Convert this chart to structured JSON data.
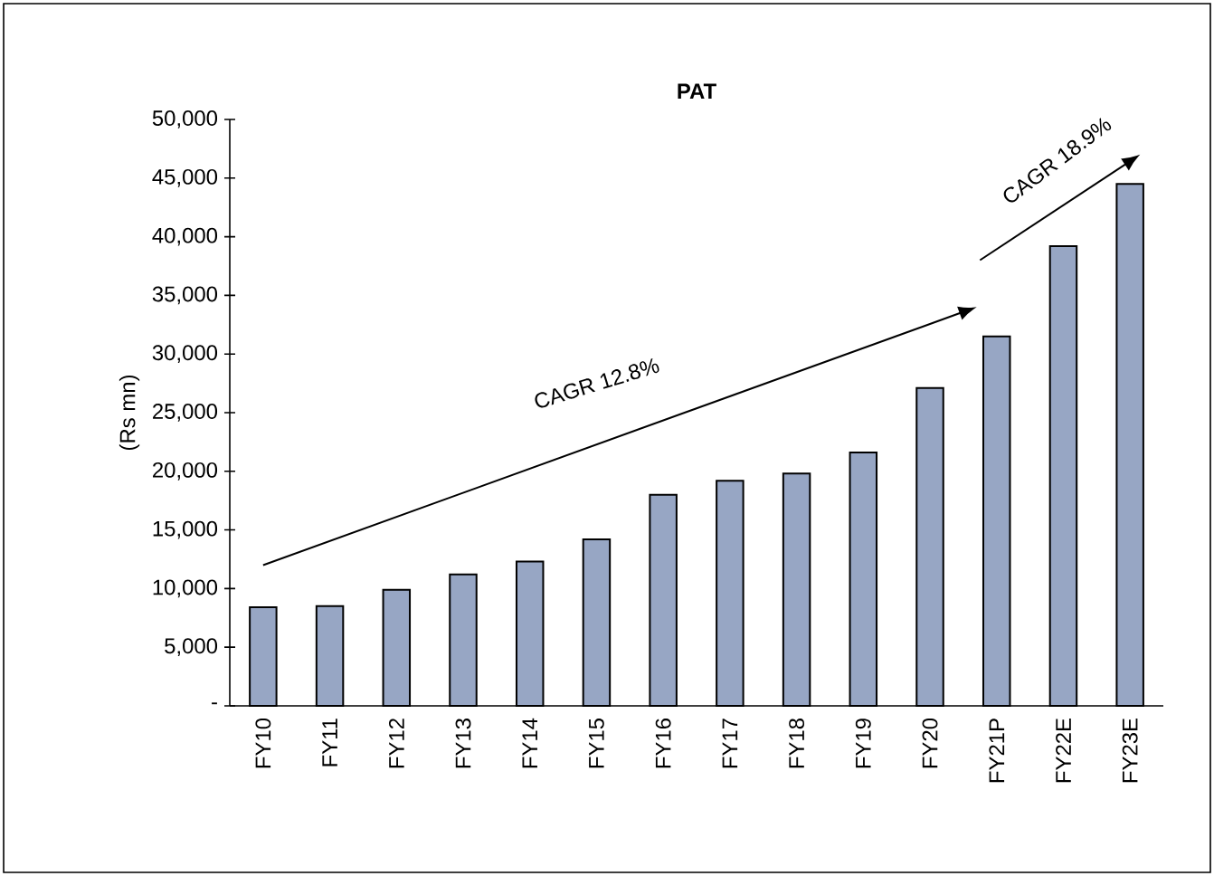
{
  "chart_data": {
    "type": "bar",
    "title": "PAT",
    "ylabel": "(Rs mn)",
    "categories": [
      "FY10",
      "FY11",
      "FY12",
      "FY13",
      "FY14",
      "FY15",
      "FY16",
      "FY17",
      "FY18",
      "FY19",
      "FY20",
      "FY21P",
      "FY22E",
      "FY23E"
    ],
    "values": [
      8400,
      8500,
      9900,
      11200,
      12300,
      14200,
      18000,
      19200,
      19800,
      21600,
      27100,
      31500,
      39200,
      44500
    ],
    "color": "#97a6c4",
    "ylim": [
      0,
      50000
    ],
    "yticks": [
      {
        "value": 0,
        "label": "-"
      },
      {
        "value": 5000,
        "label": "5,000"
      },
      {
        "value": 10000,
        "label": "10,000"
      },
      {
        "value": 15000,
        "label": "15,000"
      },
      {
        "value": 20000,
        "label": "20,000"
      },
      {
        "value": 25000,
        "label": "25,000"
      },
      {
        "value": 30000,
        "label": "30,000"
      },
      {
        "value": 35000,
        "label": "35,000"
      },
      {
        "value": 40000,
        "label": "40,000"
      },
      {
        "value": 45000,
        "label": "45,000"
      },
      {
        "value": 50000,
        "label": "50,000"
      }
    ],
    "grid": false,
    "annotations": [
      "CAGR 12.8%",
      "CAGR 18.9%"
    ]
  }
}
